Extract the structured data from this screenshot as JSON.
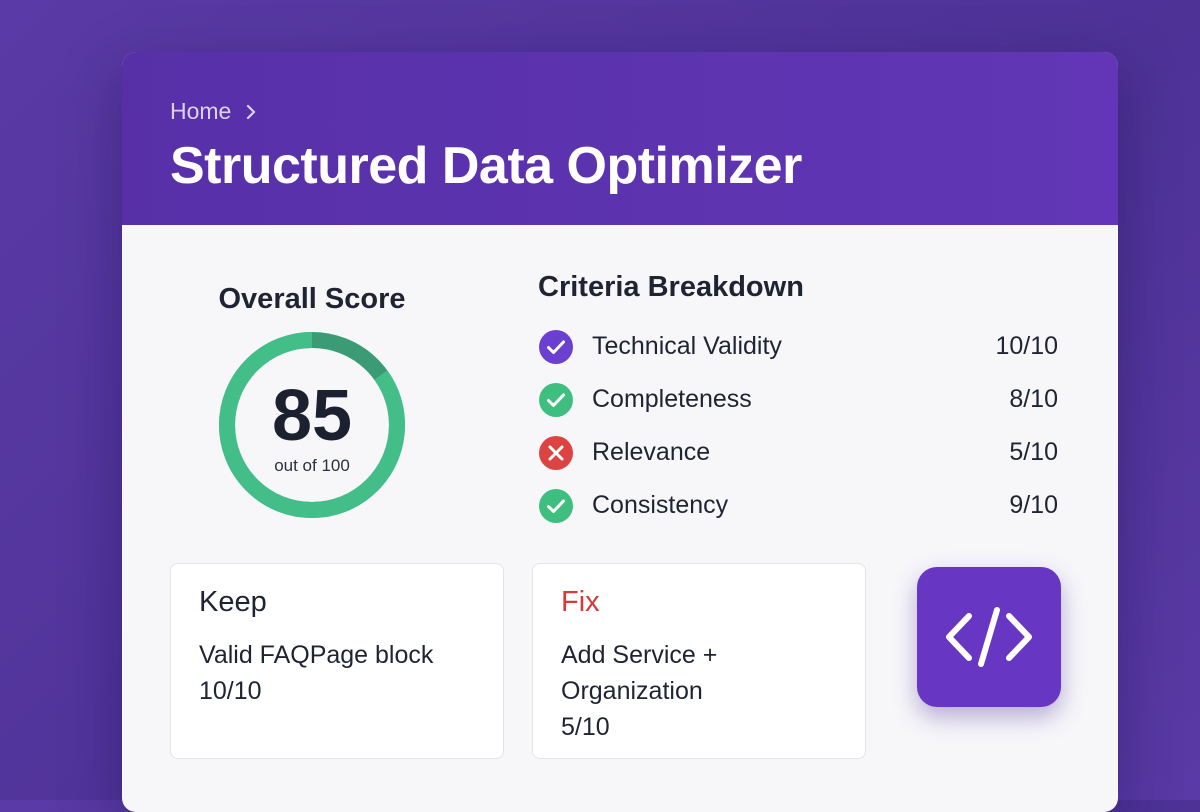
{
  "header": {
    "breadcrumb": {
      "home_label": "Home"
    },
    "title": "Structured Data Optimizer"
  },
  "overall": {
    "heading": "Overall Score",
    "score": "85",
    "subtext": "out of 100",
    "score_fraction": 0.85,
    "ring_color": "#44be89"
  },
  "criteria": {
    "heading": "Criteria Breakdown",
    "items": [
      {
        "label": "Technical Validity",
        "score": "10/10",
        "status": "check",
        "icon": "check-circle-icon",
        "color": "#6b3fcf"
      },
      {
        "label": "Completeness",
        "score": "8/10",
        "status": "check",
        "icon": "check-circle-icon",
        "color": "#3fbf7f"
      },
      {
        "label": "Relevance",
        "score": "5/10",
        "status": "cross",
        "icon": "x-circle-icon",
        "color": "#dc4343"
      },
      {
        "label": "Consistency",
        "score": "9/10",
        "status": "check",
        "icon": "check-circle-icon",
        "color": "#3fbf7f"
      }
    ]
  },
  "keep": {
    "title": "Keep",
    "line1": "Valid FAQPage block",
    "line2": "10/10"
  },
  "fix": {
    "title": "Fix",
    "line1": "Add Service +",
    "line2": "Organization",
    "line3": "5/10",
    "title_color": "#d33a3a"
  },
  "code_button": {
    "icon": "code-icon",
    "color": "#6737c4"
  }
}
